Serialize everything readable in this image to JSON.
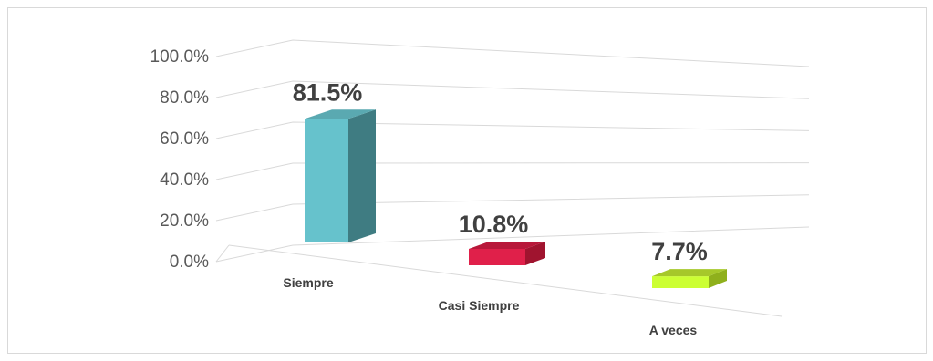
{
  "chart_data": {
    "type": "bar",
    "style": "3d-column",
    "categories": [
      "Siempre",
      "Casi Siempre",
      "A veces"
    ],
    "values": [
      81.5,
      10.8,
      7.7
    ],
    "data_labels": [
      "81.5%",
      "10.8%",
      "7.7%"
    ],
    "bar_colors": [
      {
        "front": "#66c2cc",
        "side": "#3f7c82",
        "top": "#5aa9b1"
      },
      {
        "front": "#e0204a",
        "side": "#a0142f",
        "top": "#b8183a"
      },
      {
        "front": "#ccff33",
        "side": "#8fb01c",
        "top": "#a6c82a"
      }
    ],
    "y_ticks": [
      "0.0%",
      "20.0%",
      "40.0%",
      "60.0%",
      "80.0%",
      "100.0%"
    ],
    "ylim": [
      0,
      100
    ],
    "grid": true,
    "legend": "none",
    "title": "",
    "xlabel": "",
    "ylabel": ""
  }
}
